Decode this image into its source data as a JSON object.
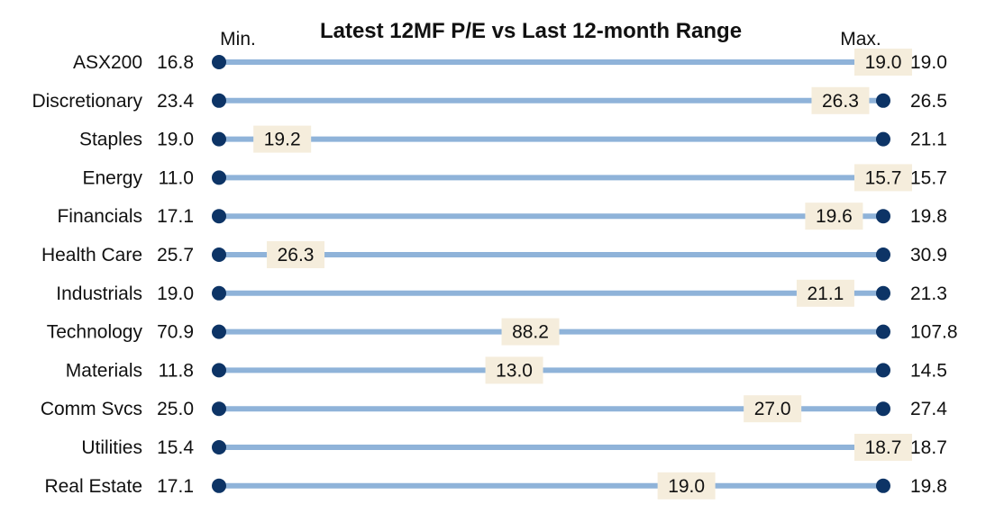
{
  "chart_data": {
    "type": "range-dot",
    "title": "Latest 12MF P/E vs Last 12-month Range",
    "min_label": "Min.",
    "max_label": "Max.",
    "colors": {
      "bar": "#8fb3d9",
      "dot": "#0d3466",
      "latest_box": "#f5eddc",
      "text": "#111111"
    },
    "rows": [
      {
        "category": "ASX200",
        "min": "16.8",
        "latest": "19.0",
        "max": "19.0"
      },
      {
        "category": "Discretionary",
        "min": "23.4",
        "latest": "26.3",
        "max": "26.5"
      },
      {
        "category": "Staples",
        "min": "19.0",
        "latest": "19.2",
        "max": "21.1"
      },
      {
        "category": "Energy",
        "min": "11.0",
        "latest": "15.7",
        "max": "15.7"
      },
      {
        "category": "Financials",
        "min": "17.1",
        "latest": "19.6",
        "max": "19.8"
      },
      {
        "category": "Health Care",
        "min": "25.7",
        "latest": "26.3",
        "max": "30.9"
      },
      {
        "category": "Industrials",
        "min": "19.0",
        "latest": "21.1",
        "max": "21.3"
      },
      {
        "category": "Technology",
        "min": "70.9",
        "latest": "88.2",
        "max": "107.8"
      },
      {
        "category": "Materials",
        "min": "11.8",
        "latest": "13.0",
        "max": "14.5"
      },
      {
        "category": "Comm Svcs",
        "min": "25.0",
        "latest": "27.0",
        "max": "27.4"
      },
      {
        "category": "Utilities",
        "min": "15.4",
        "latest": "18.7",
        "max": "18.7"
      },
      {
        "category": "Real Estate",
        "min": "17.1",
        "latest": "19.0",
        "max": "19.8"
      }
    ]
  }
}
